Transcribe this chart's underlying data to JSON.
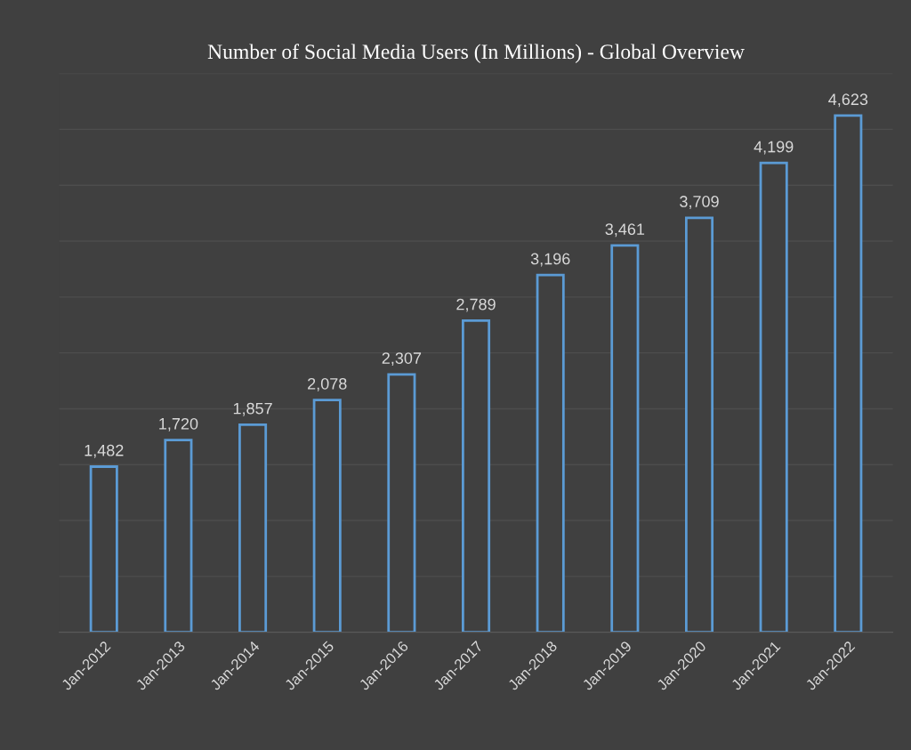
{
  "chart_data": {
    "type": "bar",
    "title": "Number of Social Media Users (In Millions) - Global Overview",
    "categories": [
      "Jan-2012",
      "Jan-2013",
      "Jan-2014",
      "Jan-2015",
      "Jan-2016",
      "Jan-2017",
      "Jan-2018",
      "Jan-2019",
      "Jan-2020",
      "Jan-2021",
      "Jan-2022"
    ],
    "values": [
      1482,
      1720,
      1857,
      2078,
      2307,
      2789,
      3196,
      3461,
      3709,
      4199,
      4623
    ],
    "color": "#5b9bd5",
    "value_labels": [
      "1,482",
      "1,720",
      "1,857",
      "2,078",
      "2,307",
      "2,789",
      "3,196",
      "3,461",
      "3,709",
      "4,199",
      "4,623"
    ],
    "ylim": [
      0,
      5000
    ],
    "yticks": [
      {
        "value": 0,
        "label": null
      },
      {
        "value": 500,
        "label": null
      },
      {
        "value": 1000,
        "label": null
      },
      {
        "value": 1500,
        "label": null
      },
      {
        "value": 2000,
        "label": null
      },
      {
        "value": 2500,
        "label": null
      },
      {
        "value": 3000,
        "label": null
      },
      {
        "value": 3500,
        "label": null
      },
      {
        "value": 4000,
        "label": null
      },
      {
        "value": 4500,
        "label": null
      },
      {
        "value": 5000,
        "label": null
      }
    ],
    "tick_labels": "x",
    "grid": "y"
  }
}
